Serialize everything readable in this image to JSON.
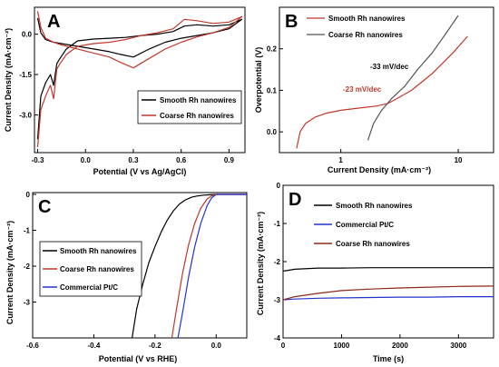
{
  "chart_data": [
    {
      "panel": "A",
      "type": "line",
      "xlabel": "Potential (V vs Ag/AgCl)",
      "ylabel": "Current Density (mA·cm⁻²)",
      "xlim": [
        -0.32,
        1.0
      ],
      "ylim": [
        -4.4,
        1.0
      ],
      "xticks": [
        -0.3,
        0.0,
        0.3,
        0.6,
        0.9
      ],
      "xtick_labels": [
        "-0.3",
        "0.0",
        "0.3",
        "0.6",
        "0.9"
      ],
      "yticks": [
        0.0,
        -1.5,
        -3.0
      ],
      "ytick_labels": [
        "0.0",
        "-1.5",
        "-3.0"
      ],
      "legend_position": "lower-right",
      "series": [
        {
          "name": "Smooth Rh nanowires",
          "color": "#000000",
          "x": [
            -0.3,
            -0.28,
            -0.25,
            -0.22,
            -0.2,
            -0.18,
            -0.16,
            -0.12,
            -0.05,
            0.05,
            0.15,
            0.25,
            0.35,
            0.45,
            0.55,
            0.62,
            0.7,
            0.8,
            0.9,
            0.98,
            0.98,
            0.9,
            0.8,
            0.7,
            0.6,
            0.5,
            0.4,
            0.3,
            0.22,
            0.15,
            0.05,
            -0.05,
            -0.15,
            -0.2,
            -0.25,
            -0.28,
            -0.3
          ],
          "y": [
            -3.9,
            -2.3,
            -1.8,
            -1.5,
            -1.9,
            -1.1,
            -0.9,
            -0.55,
            -0.25,
            -0.18,
            -0.15,
            -0.12,
            -0.05,
            0.0,
            0.1,
            0.3,
            0.35,
            0.3,
            0.35,
            0.55,
            0.55,
            0.2,
            0.05,
            -0.05,
            -0.15,
            -0.3,
            -0.55,
            -0.85,
            -0.75,
            -0.65,
            -0.55,
            -0.45,
            -0.35,
            -0.3,
            -0.2,
            0.05,
            0.6
          ]
        },
        {
          "name": "Coarse Rh nanowires",
          "color": "#c0392b",
          "x": [
            -0.3,
            -0.28,
            -0.25,
            -0.22,
            -0.2,
            -0.18,
            -0.16,
            -0.12,
            -0.05,
            0.05,
            0.15,
            0.25,
            0.35,
            0.45,
            0.55,
            0.62,
            0.7,
            0.8,
            0.9,
            0.98,
            0.98,
            0.9,
            0.8,
            0.7,
            0.6,
            0.5,
            0.4,
            0.3,
            0.22,
            0.15,
            0.05,
            -0.05,
            -0.15,
            -0.2,
            -0.25,
            -0.28,
            -0.3
          ],
          "y": [
            -4.2,
            -2.8,
            -2.3,
            -1.9,
            -2.4,
            -1.3,
            -1.1,
            -0.75,
            -0.45,
            -0.35,
            -0.3,
            -0.2,
            -0.05,
            0.05,
            0.2,
            0.55,
            0.5,
            0.4,
            0.45,
            0.65,
            0.65,
            0.25,
            0.05,
            -0.1,
            -0.3,
            -0.55,
            -0.9,
            -1.25,
            -1.05,
            -0.85,
            -0.7,
            -0.55,
            -0.4,
            -0.3,
            -0.15,
            0.25,
            0.85
          ]
        }
      ]
    },
    {
      "panel": "B",
      "type": "line",
      "xlabel": "Current Density (mA·cm⁻²)",
      "ylabel": "Overpotential (V)",
      "xscale": "log",
      "xlim": [
        0.3,
        20
      ],
      "ylim": [
        -0.05,
        0.3
      ],
      "xticks": [
        1,
        10
      ],
      "xtick_labels": [
        "1",
        "10"
      ],
      "yticks": [
        0.0,
        0.1,
        0.2
      ],
      "ytick_labels": [
        "0.0",
        "0.1",
        "0.2"
      ],
      "legend_position": "top-left",
      "annotations": [
        {
          "text": "-33 mV/dec",
          "color": "#000000"
        },
        {
          "text": "-23 mV/dec",
          "color": "#c0392b"
        }
      ],
      "series": [
        {
          "name": "Smooth Rh nanowires",
          "color": "#c0392b",
          "x": [
            0.42,
            0.45,
            0.5,
            0.6,
            0.75,
            1.0,
            1.5,
            2.0,
            2.5,
            3.0,
            4.0,
            6.0,
            9.0,
            12.0
          ],
          "y": [
            -0.04,
            0.0,
            0.02,
            0.035,
            0.045,
            0.052,
            0.058,
            0.062,
            0.068,
            0.08,
            0.1,
            0.14,
            0.19,
            0.23
          ]
        },
        {
          "name": "Coarse Rh nanowires",
          "color": "#555555",
          "x": [
            1.7,
            1.9,
            2.2,
            2.7,
            3.5,
            4.5,
            6.0,
            8.0,
            10.0
          ],
          "y": [
            -0.02,
            0.02,
            0.05,
            0.08,
            0.11,
            0.15,
            0.19,
            0.24,
            0.28
          ]
        }
      ]
    },
    {
      "panel": "C",
      "type": "line",
      "xlabel": "Potential (V vs RHE)",
      "ylabel": "Current Density (mA·cm⁻²)",
      "xlim": [
        -0.6,
        0.1
      ],
      "ylim": [
        -4.0,
        0.05
      ],
      "xticks": [
        -0.6,
        -0.4,
        -0.2,
        0.0
      ],
      "xtick_labels": [
        "-0.6",
        "-0.4",
        "-0.2",
        "0.0"
      ],
      "yticks": [
        0,
        -1,
        -2,
        -3
      ],
      "ytick_labels": [
        "0",
        "-1",
        "-2",
        "-3"
      ],
      "legend_position": "center-left",
      "series": [
        {
          "name": "Smooth Rh nanowires",
          "color": "#000000",
          "x": [
            -0.275,
            -0.26,
            -0.24,
            -0.22,
            -0.2,
            -0.18,
            -0.16,
            -0.14,
            -0.12,
            -0.1,
            -0.08,
            -0.06,
            -0.04,
            -0.02,
            0.0,
            0.1
          ],
          "y": [
            -4.0,
            -3.2,
            -2.5,
            -1.9,
            -1.45,
            -1.05,
            -0.72,
            -0.46,
            -0.27,
            -0.15,
            -0.08,
            -0.04,
            -0.02,
            -0.01,
            0.0,
            0.0
          ]
        },
        {
          "name": "Coarse Rh nanowires",
          "color": "#c0392b",
          "x": [
            -0.145,
            -0.13,
            -0.11,
            -0.09,
            -0.07,
            -0.05,
            -0.03,
            -0.015,
            0.0,
            0.1
          ],
          "y": [
            -4.0,
            -3.2,
            -2.2,
            -1.4,
            -0.8,
            -0.38,
            -0.13,
            -0.04,
            0.0,
            0.0
          ]
        },
        {
          "name": "Commercial Pt/C",
          "color": "#2233cc",
          "x": [
            -0.125,
            -0.11,
            -0.09,
            -0.07,
            -0.05,
            -0.03,
            -0.015,
            0.0,
            0.1
          ],
          "y": [
            -4.0,
            -3.3,
            -2.3,
            -1.45,
            -0.8,
            -0.32,
            -0.1,
            0.0,
            0.0
          ]
        }
      ]
    },
    {
      "panel": "D",
      "type": "line",
      "xlabel": "Time (s)",
      "ylabel": "Current Density (mA·cm⁻²)",
      "xlim": [
        0,
        3600
      ],
      "ylim": [
        -4.0,
        0.0
      ],
      "xticks": [
        0,
        1000,
        2000,
        3000
      ],
      "xtick_labels": [
        "0",
        "1000",
        "2000",
        "3000"
      ],
      "yticks": [
        0,
        -1,
        -2,
        -3,
        -4
      ],
      "ytick_labels": [
        "0",
        "-1",
        "-2",
        "-3",
        "-4"
      ],
      "legend_position": "top-right",
      "series": [
        {
          "name": "Smooth Rh nanowires",
          "color": "#000000",
          "x": [
            0,
            200,
            600,
            1000,
            1500,
            2000,
            2500,
            3000,
            3600
          ],
          "y": [
            -2.25,
            -2.2,
            -2.17,
            -2.17,
            -2.16,
            -2.16,
            -2.16,
            -2.16,
            -2.16
          ]
        },
        {
          "name": "Commercial Pt/C",
          "color": "#2233cc",
          "x": [
            0,
            200,
            600,
            1000,
            1500,
            2000,
            2500,
            3000,
            3600
          ],
          "y": [
            -3.0,
            -2.98,
            -2.96,
            -2.95,
            -2.94,
            -2.93,
            -2.93,
            -2.92,
            -2.92
          ]
        },
        {
          "name": "Coarse Rh nanowires",
          "color": "#8b2a1a",
          "x": [
            0,
            200,
            600,
            1000,
            1500,
            2000,
            2500,
            3000,
            3600
          ],
          "y": [
            -3.0,
            -2.92,
            -2.83,
            -2.76,
            -2.72,
            -2.69,
            -2.67,
            -2.65,
            -2.64
          ]
        }
      ]
    }
  ]
}
